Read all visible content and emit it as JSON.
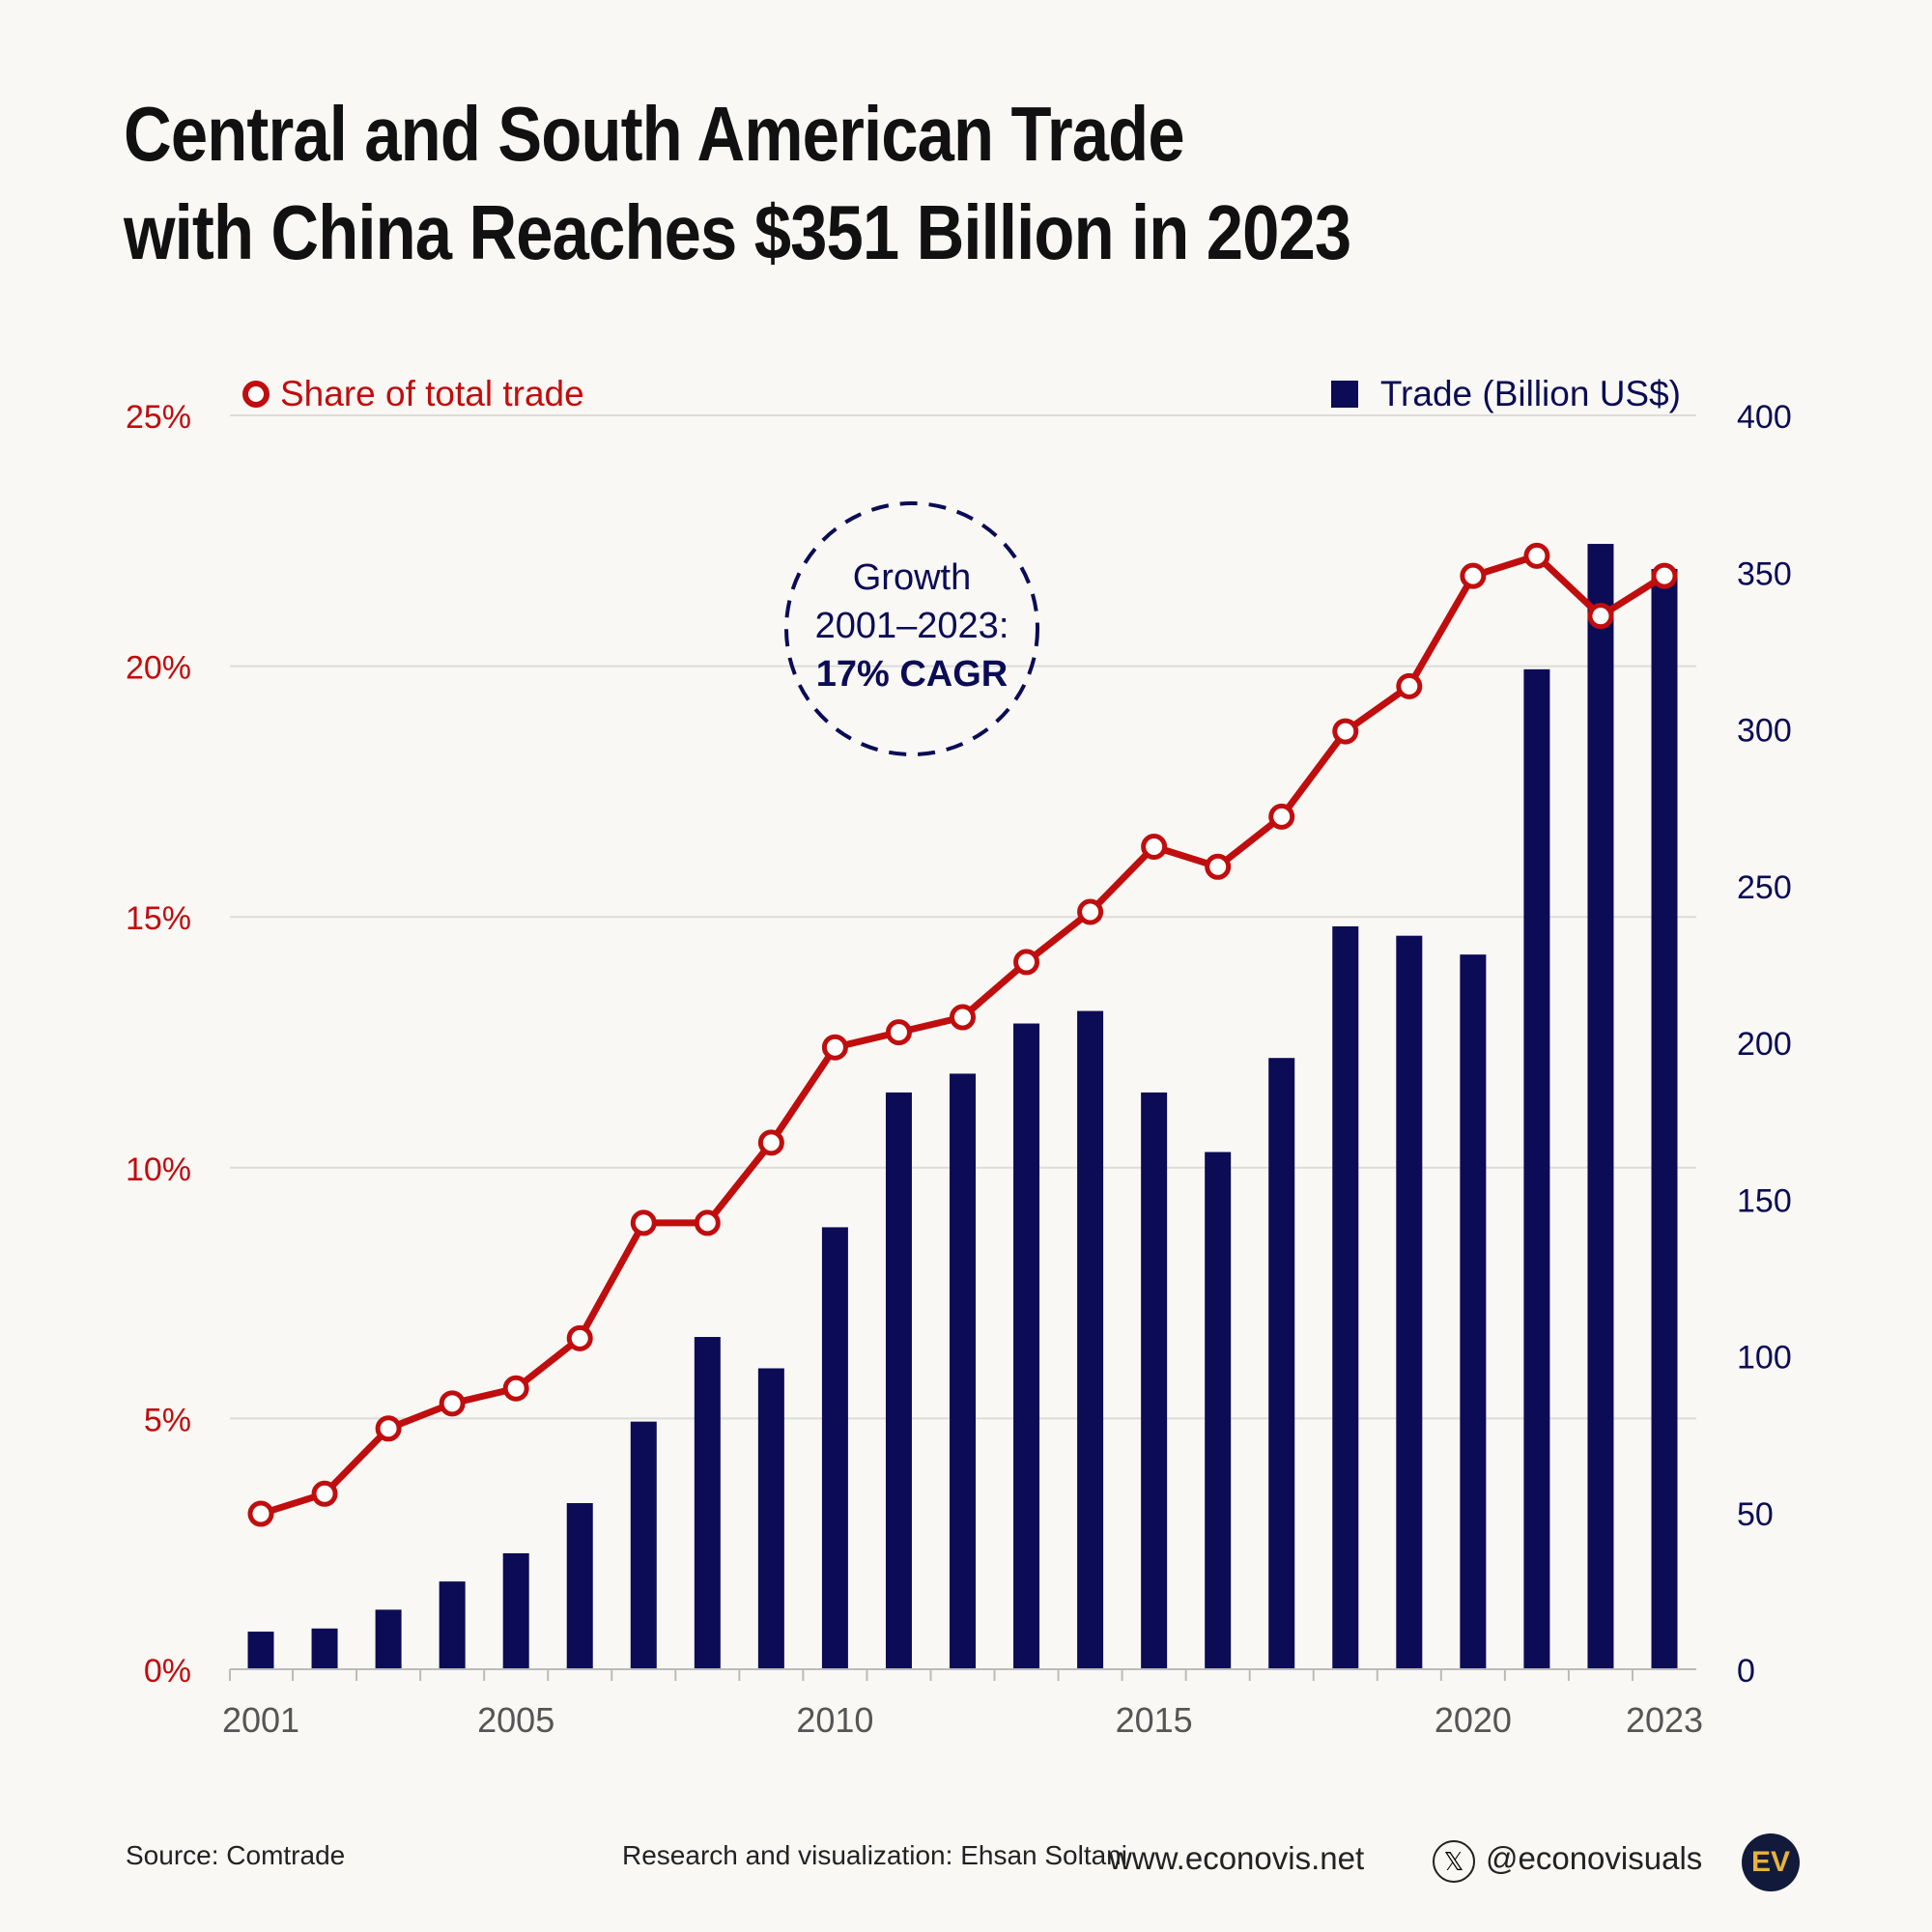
{
  "title_line1": "Central and South American Trade",
  "title_line2": "with China Reaches $351 Billion in 2023",
  "annotation": {
    "line1": "Growth",
    "line2": "2001–2023:",
    "line3": "17% CAGR"
  },
  "footer": {
    "source": "Source: Comtrade",
    "credit": "Research and visualization: Ehsan Soltani",
    "website": "www.econovis.net",
    "handle": "@econovisuals",
    "logo_text": "EV",
    "x_icon": "x-logo-icon"
  },
  "colors": {
    "bars": "#0b0c55",
    "line": "#c00d0d",
    "background": "#f9f8f5"
  },
  "chart_data": {
    "type": "bar+line",
    "x": [
      2001,
      2002,
      2003,
      2004,
      2005,
      2006,
      2007,
      2008,
      2009,
      2010,
      2011,
      2012,
      2013,
      2014,
      2015,
      2016,
      2017,
      2018,
      2019,
      2020,
      2021,
      2022,
      2023
    ],
    "x_tick_labels": [
      "2001",
      "2005",
      "2010",
      "2015",
      "2020",
      "2023"
    ],
    "series": [
      {
        "name": "Trade (Billion US$)",
        "type": "bar",
        "axis": "right",
        "values": [
          12,
          13,
          19,
          28,
          37,
          53,
          79,
          106,
          96,
          141,
          184,
          190,
          206,
          210,
          184,
          165,
          195,
          237,
          234,
          228,
          319,
          359,
          351
        ]
      },
      {
        "name": "Share of total trade",
        "type": "line",
        "axis": "left",
        "values": [
          3.1,
          3.5,
          4.8,
          5.3,
          5.6,
          6.6,
          8.9,
          8.9,
          10.5,
          12.4,
          12.7,
          13.0,
          14.1,
          15.1,
          16.4,
          16.0,
          17.0,
          18.7,
          19.6,
          21.8,
          22.2,
          21.0,
          21.8
        ]
      }
    ],
    "left_axis": {
      "ylim": [
        0,
        25
      ],
      "ticks": [
        "0%",
        "5%",
        "10%",
        "15%",
        "20%",
        "25%"
      ]
    },
    "right_axis": {
      "ylim": [
        0,
        400
      ],
      "ticks": [
        "0",
        "50",
        "100",
        "150",
        "200",
        "250",
        "300",
        "350",
        "400"
      ]
    },
    "grid": true,
    "legend": [
      "top-left: Share of total trade",
      "top-right: Trade (Billion US$)"
    ]
  }
}
